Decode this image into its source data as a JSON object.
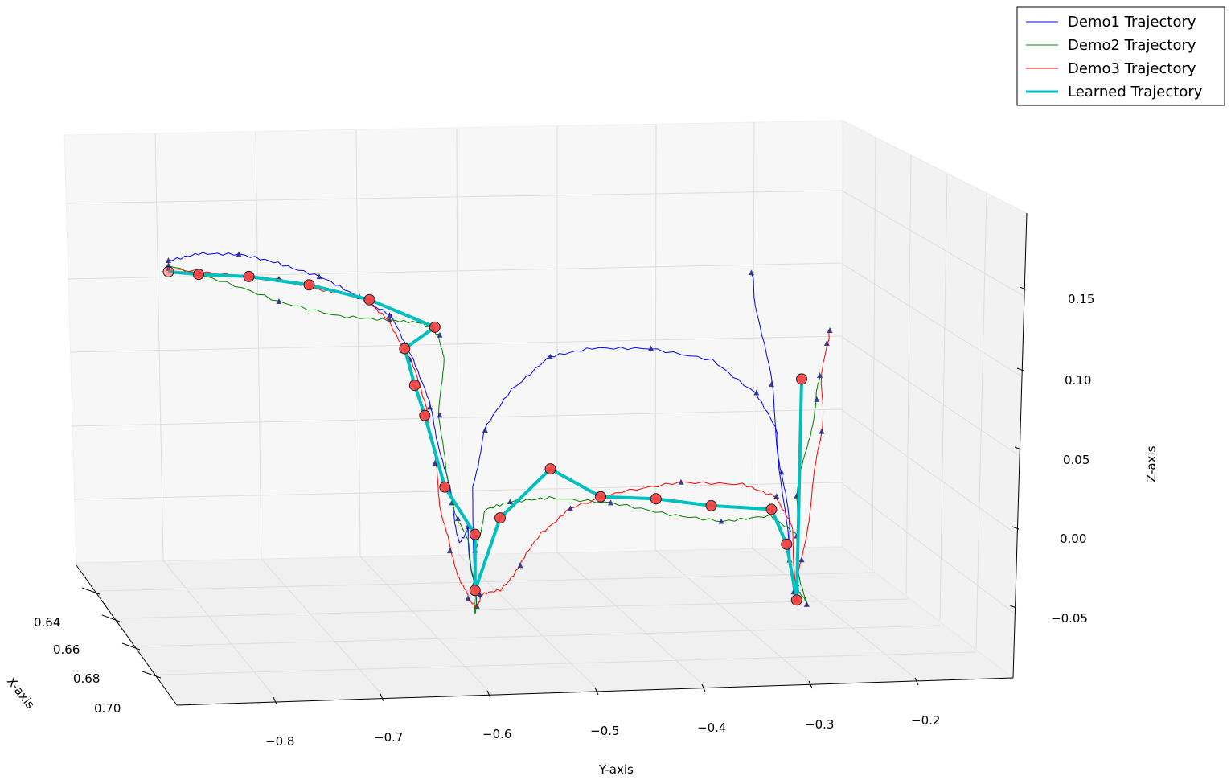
{
  "chart_data": {
    "type": "line",
    "projection": "3d",
    "xlabel": "X-axis",
    "ylabel": "Y-axis",
    "zlabel": "Z-axis",
    "x_ticks": [
      "0.64",
      "0.66",
      "0.68",
      "0.70"
    ],
    "y_ticks": [
      "−0.8",
      "−0.7",
      "−0.6",
      "−0.5",
      "−0.4",
      "−0.3",
      "−0.2"
    ],
    "z_ticks": [
      "−0.05",
      "0.00",
      "0.05",
      "0.10",
      "0.15"
    ],
    "ylim": [
      -0.9,
      -0.15
    ],
    "zlim": [
      -0.09,
      0.19
    ],
    "grid": true,
    "legend_position": "top-right",
    "series": [
      {
        "name": "Demo1 Trajectory",
        "color": "#0000ff",
        "line_width": 1,
        "waypoint_marker": "triangle",
        "points_yz": [
          [
            -0.87,
            0.175
          ],
          [
            -0.84,
            0.179
          ],
          [
            -0.8,
            0.178
          ],
          [
            -0.76,
            0.172
          ],
          [
            -0.72,
            0.163
          ],
          [
            -0.68,
            0.15
          ],
          [
            -0.65,
            0.138
          ],
          [
            -0.625,
            0.11
          ],
          [
            -0.61,
            0.08
          ],
          [
            -0.598,
            0.05
          ],
          [
            -0.588,
            0.02
          ],
          [
            -0.58,
            -0.005
          ],
          [
            -0.572,
            0.005
          ],
          [
            -0.568,
            -0.025
          ],
          [
            -0.563,
            -0.045
          ],
          [
            -0.568,
            0.03
          ],
          [
            -0.555,
            0.065
          ],
          [
            -0.53,
            0.09
          ],
          [
            -0.49,
            0.11
          ],
          [
            -0.45,
            0.115
          ],
          [
            -0.39,
            0.114
          ],
          [
            -0.33,
            0.106
          ],
          [
            -0.285,
            0.085
          ],
          [
            -0.265,
            0.06
          ],
          [
            -0.26,
            0.035
          ],
          [
            -0.252,
            0.0
          ],
          [
            -0.248,
            -0.04
          ],
          [
            -0.245,
            -0.045
          ],
          [
            -0.252,
            -0.02
          ],
          [
            -0.26,
            0.03
          ],
          [
            -0.27,
            0.09
          ],
          [
            -0.285,
            0.14
          ],
          [
            -0.29,
            0.16
          ]
        ]
      },
      {
        "name": "Demo2 Trajectory",
        "color": "#008000",
        "line_width": 1,
        "waypoint_marker": "triangle",
        "points_yz": [
          [
            -0.87,
            0.172
          ],
          [
            -0.82,
            0.162
          ],
          [
            -0.76,
            0.148
          ],
          [
            -0.7,
            0.138
          ],
          [
            -0.65,
            0.135
          ],
          [
            -0.62,
            0.133
          ],
          [
            -0.6,
            0.125
          ],
          [
            -0.597,
            0.11
          ],
          [
            -0.6,
            0.075
          ],
          [
            -0.595,
            0.04
          ],
          [
            -0.582,
            0.01
          ],
          [
            -0.572,
            -0.005
          ],
          [
            -0.565,
            -0.03
          ],
          [
            -0.565,
            -0.05
          ],
          [
            -0.565,
            -0.01
          ],
          [
            -0.555,
            0.015
          ],
          [
            -0.53,
            0.02
          ],
          [
            -0.49,
            0.022
          ],
          [
            -0.43,
            0.018
          ],
          [
            -0.37,
            0.01
          ],
          [
            -0.32,
            0.005
          ],
          [
            -0.27,
            0.008
          ],
          [
            -0.245,
            -0.005
          ],
          [
            -0.242,
            -0.04
          ],
          [
            -0.235,
            -0.048
          ],
          [
            -0.245,
            -0.02
          ],
          [
            -0.245,
            0.02
          ],
          [
            -0.235,
            0.05
          ],
          [
            -0.225,
            0.08
          ],
          [
            -0.222,
            0.095
          ]
        ]
      },
      {
        "name": "Demo3 Trajectory",
        "color": "#ff0000",
        "line_width": 1,
        "waypoint_marker": "triangle",
        "points_yz": [
          [
            -0.87,
            0.17
          ],
          [
            -0.82,
            0.166
          ],
          [
            -0.76,
            0.162
          ],
          [
            -0.72,
            0.155
          ],
          [
            -0.68,
            0.15
          ],
          [
            -0.65,
            0.135
          ],
          [
            -0.63,
            0.11
          ],
          [
            -0.612,
            0.08
          ],
          [
            -0.605,
            0.045
          ],
          [
            -0.598,
            0.015
          ],
          [
            -0.59,
            -0.01
          ],
          [
            -0.578,
            -0.03
          ],
          [
            -0.572,
            -0.04
          ],
          [
            -0.563,
            -0.045
          ],
          [
            -0.56,
            -0.038
          ],
          [
            -0.54,
            -0.035
          ],
          [
            -0.52,
            -0.02
          ],
          [
            -0.5,
            0.0
          ],
          [
            -0.47,
            0.015
          ],
          [
            -0.42,
            0.025
          ],
          [
            -0.36,
            0.03
          ],
          [
            -0.3,
            0.028
          ],
          [
            -0.265,
            0.02
          ],
          [
            -0.25,
            0.0
          ],
          [
            -0.245,
            -0.035
          ],
          [
            -0.248,
            -0.048
          ],
          [
            -0.24,
            -0.02
          ],
          [
            -0.23,
            0.02
          ],
          [
            -0.22,
            0.06
          ],
          [
            -0.22,
            0.09
          ],
          [
            -0.215,
            0.115
          ],
          [
            -0.212,
            0.123
          ]
        ]
      },
      {
        "name": "Learned Trajectory",
        "color": "#00bfbf",
        "line_width": 4,
        "waypoint_marker": "circle",
        "marker_color": "#ff3b3b",
        "points_yz": [
          [
            -0.87,
            0.168
          ],
          [
            -0.84,
            0.166
          ],
          [
            -0.79,
            0.164
          ],
          [
            -0.73,
            0.158
          ],
          [
            -0.67,
            0.148
          ],
          [
            -0.605,
            0.13
          ],
          [
            -0.635,
            0.117
          ],
          [
            -0.625,
            0.094
          ],
          [
            -0.615,
            0.075
          ],
          [
            -0.595,
            0.03
          ],
          [
            -0.565,
            0.0
          ],
          [
            -0.565,
            -0.035
          ],
          [
            -0.54,
            0.01
          ],
          [
            -0.49,
            0.04
          ],
          [
            -0.44,
            0.022
          ],
          [
            -0.385,
            0.02
          ],
          [
            -0.33,
            0.015
          ],
          [
            -0.27,
            0.012
          ],
          [
            -0.255,
            -0.01
          ],
          [
            -0.245,
            -0.045
          ],
          [
            -0.24,
            0.093
          ]
        ]
      }
    ]
  }
}
